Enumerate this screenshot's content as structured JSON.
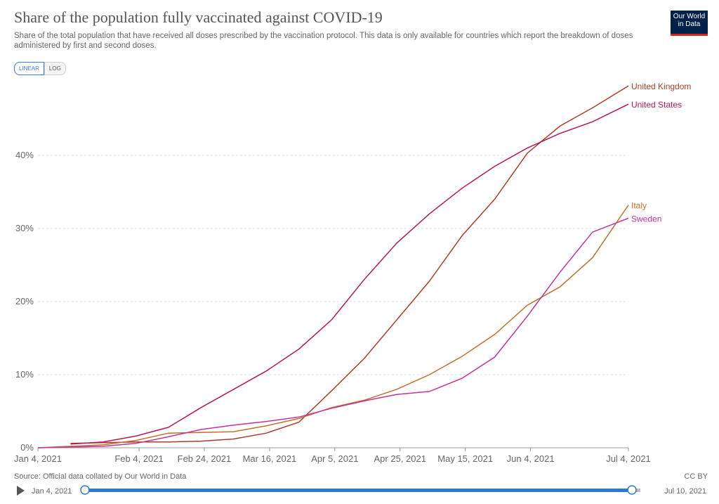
{
  "chart_data": {
    "type": "line",
    "title": "Share of the population fully vaccinated against COVID-19",
    "subtitle": "Share of the total population that have received all doses prescribed by the vaccination protocol. This data is only available for countries which report the breakdown of doses administered by first and second doses.",
    "x": [
      "2021-01-04",
      "2021-01-14",
      "2021-01-24",
      "2021-02-03",
      "2021-02-13",
      "2021-02-23",
      "2021-03-05",
      "2021-03-15",
      "2021-03-25",
      "2021-04-04",
      "2021-04-14",
      "2021-04-24",
      "2021-05-04",
      "2021-05-14",
      "2021-05-24",
      "2021-06-03",
      "2021-06-13",
      "2021-06-23",
      "2021-07-04"
    ],
    "series": [
      {
        "name": "United Kingdom",
        "color": "#a8412a",
        "values": [
          null,
          0.6,
          0.7,
          0.8,
          0.8,
          0.9,
          1.2,
          2.0,
          3.5,
          7.8,
          12.2,
          17.5,
          22.8,
          29,
          34,
          40.3,
          44,
          46.5,
          49.5
        ]
      },
      {
        "name": "United States",
        "color": "#b5185c",
        "values": [
          null,
          0.5,
          0.8,
          1.6,
          2.8,
          5.5,
          8.0,
          10.5,
          13.5,
          17.5,
          23,
          28,
          32,
          35.5,
          38.5,
          41,
          43,
          44.6,
          47
        ]
      },
      {
        "name": "Italy",
        "color": "#c2702d",
        "values": [
          0,
          0.2,
          0.4,
          1.0,
          2.0,
          2.1,
          2.2,
          3.0,
          4.0,
          5.5,
          6.5,
          8.0,
          10,
          12.5,
          15.5,
          19.5,
          22,
          26,
          33.2
        ]
      },
      {
        "name": "Sweden",
        "color": "#c2349a",
        "values": [
          0,
          0.1,
          0.2,
          0.6,
          1.5,
          2.5,
          3.1,
          3.6,
          4.2,
          5.4,
          6.4,
          7.3,
          7.7,
          9.5,
          12.4,
          18,
          24,
          29.5,
          31.4
        ]
      }
    ],
    "xlim": [
      "2021-01-04",
      "2021-07-04"
    ],
    "xticks": [
      {
        "value": "2021-01-04",
        "label": "Jan 4, 2021"
      },
      {
        "value": "2021-02-04",
        "label": "Feb 4, 2021"
      },
      {
        "value": "2021-02-24",
        "label": "Feb 24, 2021"
      },
      {
        "value": "2021-03-16",
        "label": "Mar 16, 2021"
      },
      {
        "value": "2021-04-05",
        "label": "Apr 5, 2021"
      },
      {
        "value": "2021-04-25",
        "label": "Apr 25, 2021"
      },
      {
        "value": "2021-05-15",
        "label": "May 15, 2021"
      },
      {
        "value": "2021-06-04",
        "label": "Jun 4, 2021"
      },
      {
        "value": "2021-07-04",
        "label": "Jul 4, 2021"
      }
    ],
    "ylim": [
      0,
      50
    ],
    "yticks": [
      {
        "value": 0,
        "label": "0%"
      },
      {
        "value": 10,
        "label": "10%"
      },
      {
        "value": 20,
        "label": "20%"
      },
      {
        "value": 30,
        "label": "30%"
      },
      {
        "value": 40,
        "label": "40%"
      }
    ],
    "grid": true,
    "source": "Source: Official data collated by Our World in Data",
    "license": "CC BY"
  },
  "logo": [
    "Our World",
    "in Data"
  ],
  "controls": {
    "scale_buttons": [
      "LINEAR",
      "LOG"
    ],
    "timeline_start": "Jan 4, 2021",
    "timeline_end": "Jul 10, 2021"
  }
}
